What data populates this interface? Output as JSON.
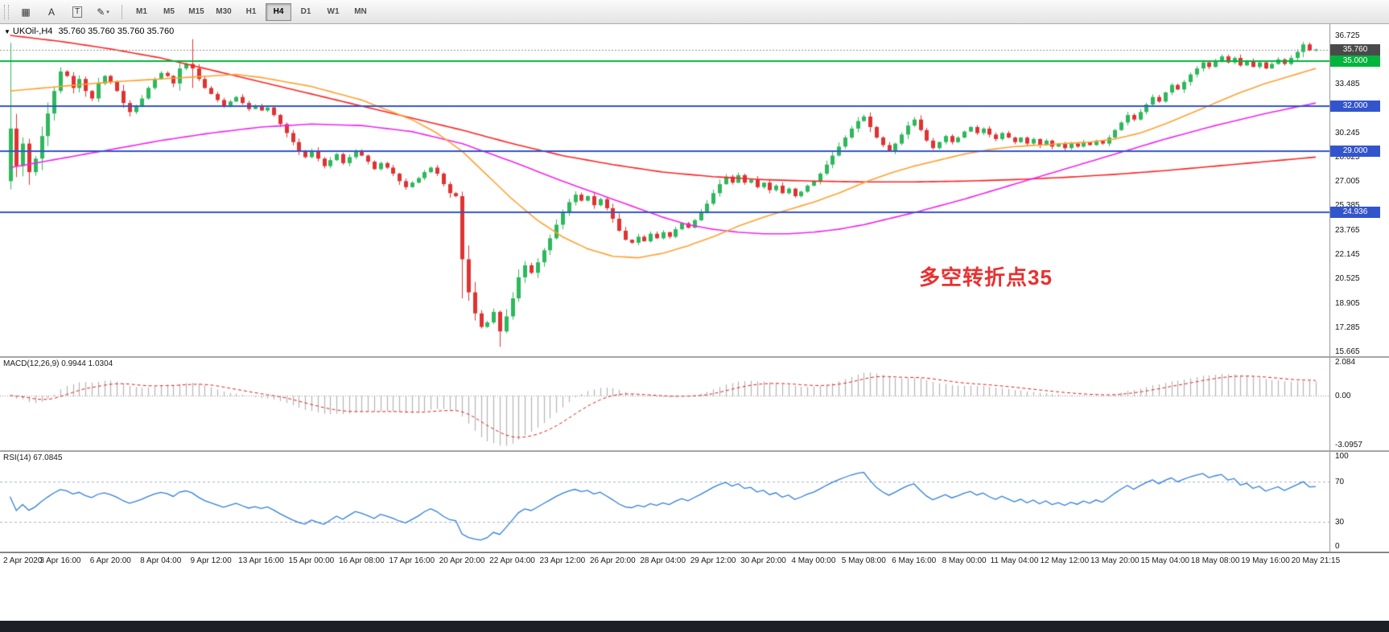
{
  "toolbar": {
    "icons": [
      {
        "name": "chart-grid-icon",
        "glyph": "▦"
      },
      {
        "name": "annotation-letter-icon",
        "glyph": "A"
      },
      {
        "name": "text-tool-icon",
        "glyph": "T",
        "boxed": true
      },
      {
        "name": "drawing-tools-icon",
        "glyph": "✎",
        "caret": true
      }
    ],
    "timeframes": [
      "M1",
      "M5",
      "M15",
      "M30",
      "H1",
      "H4",
      "D1",
      "W1",
      "MN"
    ],
    "active_timeframe": "H4"
  },
  "chart": {
    "symbol": "UKOil-,H4",
    "ohlc": "35.760 35.760 35.760 35.760",
    "annotation": {
      "text": "多空转折点35",
      "color": "#e83030"
    }
  },
  "chart_data": {
    "type": "candlestick",
    "title": "UKOil- H4",
    "ylim": [
      15.35,
      37.45
    ],
    "price_axis_labels": [
      "36.725",
      "35.105",
      "33.485",
      "31.865",
      "30.245",
      "28.625",
      "27.005",
      "25.385",
      "23.765",
      "22.145",
      "20.525",
      "18.905",
      "17.285",
      "15.665"
    ],
    "time_labels": [
      "2 Apr 2020",
      "3 Apr 16:00",
      "6 Apr 20:00",
      "8 Apr 04:00",
      "9 Apr 12:00",
      "13 Apr 16:00",
      "15 Apr 00:00",
      "16 Apr 08:00",
      "17 Apr 16:00",
      "20 Apr 20:00",
      "22 Apr 04:00",
      "23 Apr 12:00",
      "26 Apr 20:00",
      "28 Apr 04:00",
      "29 Apr 12:00",
      "30 Apr 20:00",
      "4 May 00:00",
      "5 May 08:00",
      "6 May 16:00",
      "8 May 00:00",
      "11 May 04:00",
      "12 May 12:00",
      "13 May 20:00",
      "15 May 04:00",
      "18 May 08:00",
      "19 May 16:00",
      "20 May 21:15"
    ],
    "opens_first": 27.0,
    "closes": [
      30.5,
      28.0,
      29.5,
      27.6,
      28.5,
      30.0,
      31.5,
      33.0,
      34.3,
      34.0,
      33.2,
      33.8,
      33.0,
      32.5,
      33.5,
      34.0,
      33.6,
      33.0,
      32.2,
      31.6,
      32.0,
      32.5,
      33.2,
      33.8,
      34.2,
      34.0,
      33.5,
      34.5,
      34.8,
      34.5,
      33.8,
      33.2,
      32.8,
      32.4,
      32.0,
      32.3,
      32.6,
      32.2,
      31.8,
      32.0,
      31.7,
      31.9,
      31.4,
      30.8,
      30.2,
      29.6,
      29.0,
      28.6,
      29.0,
      28.5,
      28.0,
      28.4,
      28.8,
      28.2,
      28.6,
      29.0,
      28.7,
      28.3,
      27.8,
      28.2,
      27.9,
      27.5,
      27.0,
      26.6,
      26.9,
      27.2,
      27.6,
      27.9,
      27.5,
      26.8,
      26.2,
      26.0,
      21.8,
      19.6,
      18.2,
      17.3,
      17.6,
      18.3,
      17.0,
      18.0,
      19.2,
      20.6,
      21.4,
      20.9,
      21.6,
      22.4,
      23.2,
      24.1,
      24.9,
      25.6,
      26.1,
      25.7,
      26.0,
      25.4,
      25.8,
      25.2,
      24.5,
      23.7,
      23.1,
      22.9,
      23.3,
      23.0,
      23.5,
      23.2,
      23.6,
      23.3,
      23.8,
      24.2,
      23.9,
      24.4,
      24.9,
      25.5,
      26.2,
      26.8,
      27.3,
      26.9,
      27.4,
      26.9,
      27.1,
      26.6,
      26.9,
      26.4,
      26.7,
      26.2,
      26.5,
      26.0,
      26.3,
      26.7,
      27.0,
      27.5,
      28.1,
      28.7,
      29.3,
      29.9,
      30.5,
      31.0,
      31.3,
      30.6,
      29.9,
      29.4,
      29.0,
      29.5,
      30.1,
      30.7,
      31.1,
      30.4,
      29.7,
      29.2,
      29.6,
      30.0,
      29.6,
      29.9,
      30.3,
      30.6,
      30.2,
      30.5,
      30.1,
      29.8,
      30.2,
      29.9,
      29.6,
      29.9,
      29.5,
      29.8,
      29.4,
      29.7,
      29.3,
      29.5,
      29.2,
      29.5,
      29.3,
      29.6,
      29.4,
      29.7,
      29.5,
      29.9,
      30.4,
      30.9,
      31.4,
      31.1,
      31.6,
      32.1,
      32.6,
      32.3,
      32.9,
      33.4,
      33.1,
      33.6,
      34.1,
      34.5,
      34.9,
      34.6,
      35.0,
      35.3,
      34.9,
      35.2,
      34.7,
      35.0,
      34.6,
      34.9,
      34.5,
      34.8,
      35.1,
      34.8,
      35.2,
      35.6,
      36.1,
      35.7,
      35.76
    ],
    "wick_overrides": {
      "0": [
        36.2,
        26.45
      ],
      "29": [
        36.45,
        33.2
      ],
      "72": [
        26.3,
        19.2
      ],
      "78": [
        18.4,
        15.98
      ],
      "206": [
        36.27,
        35.25
      ]
    },
    "up_color": "#2eb85c",
    "down_color": "#e03232",
    "hlines": [
      {
        "price": 35.0,
        "color": "#00b43c",
        "tag": "35.000"
      },
      {
        "price": 32.0,
        "color": "#3355cc",
        "tag": "32.000"
      },
      {
        "price": 29.0,
        "color": "#3355cc",
        "tag": "29.000"
      },
      {
        "price": 24.936,
        "color": "#3355cc",
        "tag": "24.936"
      }
    ],
    "bid": {
      "price": 35.76,
      "tag": "35.760",
      "color": "#4a4a4a"
    },
    "ma_lines": [
      {
        "name": "ma-slow-red",
        "color": "#ff2222",
        "points": [
          [
            0,
            36.7
          ],
          [
            8,
            36.3
          ],
          [
            16,
            35.8
          ],
          [
            24,
            35.2
          ],
          [
            32,
            34.4
          ],
          [
            40,
            33.6
          ],
          [
            48,
            32.8
          ],
          [
            56,
            32.0
          ],
          [
            64,
            31.2
          ],
          [
            72,
            30.4
          ],
          [
            80,
            29.5
          ],
          [
            88,
            28.7
          ],
          [
            96,
            28.1
          ],
          [
            104,
            27.6
          ],
          [
            112,
            27.3
          ],
          [
            120,
            27.1
          ],
          [
            128,
            27.0
          ],
          [
            136,
            26.95
          ],
          [
            144,
            26.95
          ],
          [
            152,
            27.0
          ],
          [
            160,
            27.1
          ],
          [
            168,
            27.25
          ],
          [
            176,
            27.45
          ],
          [
            184,
            27.7
          ],
          [
            192,
            28.0
          ],
          [
            200,
            28.3
          ],
          [
            208,
            28.6
          ]
        ]
      },
      {
        "name": "ma-mid-magenta",
        "color": "#f024f0",
        "points": [
          [
            0,
            27.9
          ],
          [
            8,
            28.5
          ],
          [
            16,
            29.1
          ],
          [
            24,
            29.7
          ],
          [
            32,
            30.2
          ],
          [
            40,
            30.6
          ],
          [
            48,
            30.8
          ],
          [
            56,
            30.7
          ],
          [
            64,
            30.3
          ],
          [
            72,
            29.5
          ],
          [
            80,
            28.3
          ],
          [
            88,
            27.0
          ],
          [
            96,
            25.8
          ],
          [
            100,
            25.2
          ],
          [
            104,
            24.6
          ],
          [
            108,
            24.1
          ],
          [
            112,
            23.8
          ],
          [
            116,
            23.6
          ],
          [
            120,
            23.5
          ],
          [
            124,
            23.5
          ],
          [
            128,
            23.6
          ],
          [
            132,
            23.8
          ],
          [
            136,
            24.1
          ],
          [
            140,
            24.5
          ],
          [
            144,
            24.9
          ],
          [
            152,
            25.8
          ],
          [
            160,
            26.8
          ],
          [
            168,
            27.8
          ],
          [
            176,
            28.8
          ],
          [
            184,
            29.8
          ],
          [
            192,
            30.7
          ],
          [
            200,
            31.5
          ],
          [
            208,
            32.2
          ]
        ]
      },
      {
        "name": "ma-fast-orange",
        "color": "#ffa030",
        "points": [
          [
            0,
            33.0
          ],
          [
            8,
            33.3
          ],
          [
            16,
            33.6
          ],
          [
            24,
            33.8
          ],
          [
            32,
            34.0
          ],
          [
            36,
            34.1
          ],
          [
            40,
            33.9
          ],
          [
            48,
            33.3
          ],
          [
            56,
            32.4
          ],
          [
            64,
            31.1
          ],
          [
            68,
            30.2
          ],
          [
            72,
            29.0
          ],
          [
            76,
            27.4
          ],
          [
            80,
            25.8
          ],
          [
            84,
            24.4
          ],
          [
            88,
            23.3
          ],
          [
            92,
            22.5
          ],
          [
            96,
            22.0
          ],
          [
            100,
            21.9
          ],
          [
            104,
            22.2
          ],
          [
            108,
            22.7
          ],
          [
            112,
            23.3
          ],
          [
            116,
            24.0
          ],
          [
            120,
            24.6
          ],
          [
            124,
            25.1
          ],
          [
            128,
            25.6
          ],
          [
            132,
            26.2
          ],
          [
            136,
            26.9
          ],
          [
            140,
            27.5
          ],
          [
            144,
            28.0
          ],
          [
            148,
            28.4
          ],
          [
            152,
            28.8
          ],
          [
            156,
            29.1
          ],
          [
            160,
            29.3
          ],
          [
            164,
            29.4
          ],
          [
            168,
            29.5
          ],
          [
            172,
            29.6
          ],
          [
            176,
            29.8
          ],
          [
            180,
            30.2
          ],
          [
            184,
            30.8
          ],
          [
            188,
            31.5
          ],
          [
            192,
            32.2
          ],
          [
            196,
            32.9
          ],
          [
            200,
            33.5
          ],
          [
            204,
            34.0
          ],
          [
            208,
            34.5
          ]
        ]
      }
    ],
    "macd": {
      "label": "MACD(12,26,9) 0.9944 1.0304",
      "params": [
        12,
        26,
        9
      ],
      "ylim": [
        -3.35,
        2.3
      ],
      "axis_labels": [
        "2.084",
        "0.00",
        "-3.0957"
      ],
      "hist_color": "#b4b4b4",
      "signal_color": "#e02020"
    },
    "rsi": {
      "label": "RSI(14) 67.0845",
      "period": 14,
      "ylim": [
        0,
        100
      ],
      "levels": [
        70,
        30
      ],
      "axis_labels": [
        "100",
        "70",
        "30",
        "0"
      ],
      "line_color": "#2f7ed8"
    }
  }
}
